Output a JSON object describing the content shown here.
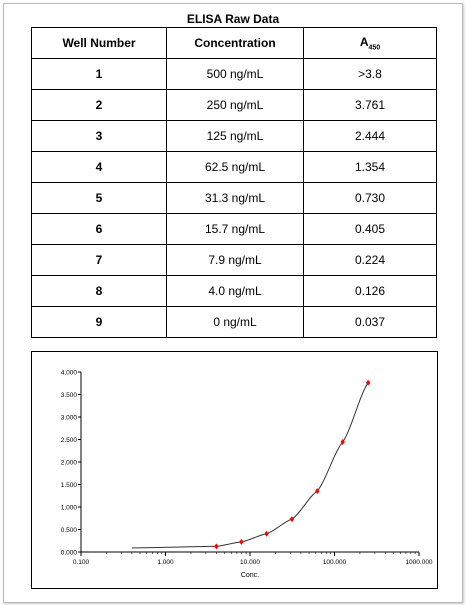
{
  "title": "ELISA Raw Data",
  "table": {
    "headers": [
      "Well Number",
      "Concentration",
      "A",
      "450"
    ],
    "rows": [
      [
        "1",
        "500 ng/mL",
        ">3.8"
      ],
      [
        "2",
        "250 ng/mL",
        "3.761"
      ],
      [
        "3",
        "125 ng/mL",
        "2.444"
      ],
      [
        "4",
        "62.5 ng/mL",
        "1.354"
      ],
      [
        "5",
        "31.3 ng/mL",
        "0.730"
      ],
      [
        "6",
        "15.7 ng/mL",
        "0.405"
      ],
      [
        "7",
        "7.9 ng/mL",
        "0.224"
      ],
      [
        "8",
        "4.0 ng/mL",
        "0.126"
      ],
      [
        "9",
        "0 ng/mL",
        "0.037"
      ]
    ]
  },
  "chart_data": {
    "type": "scatter",
    "xlabel": "Conc.",
    "ylabel": "",
    "xscale": "log",
    "xlim": [
      0.1,
      1000
    ],
    "ylim": [
      0,
      4
    ],
    "xticks": [
      0.1,
      1,
      10,
      100,
      1000
    ],
    "xtick_labels": [
      "0.100",
      "1.000",
      "10.000",
      "100.000",
      "1000.000"
    ],
    "yticks": [
      0,
      0.5,
      1,
      1.5,
      2,
      2.5,
      3,
      3.5,
      4
    ],
    "ytick_labels": [
      "0.000",
      "0.500",
      "1.000",
      "1.500",
      "2.000",
      "2.500",
      "3.000",
      "3.500",
      "4.000"
    ],
    "grid": false,
    "points": {
      "x": [
        4.0,
        7.9,
        15.7,
        31.3,
        62.5,
        125,
        250
      ],
      "y": [
        0.126,
        0.224,
        0.405,
        0.73,
        1.354,
        2.444,
        3.761
      ],
      "color": "#ff0000"
    },
    "fit_curve": {
      "x_range": [
        0.4,
        250
      ],
      "color": "#333333"
    }
  }
}
